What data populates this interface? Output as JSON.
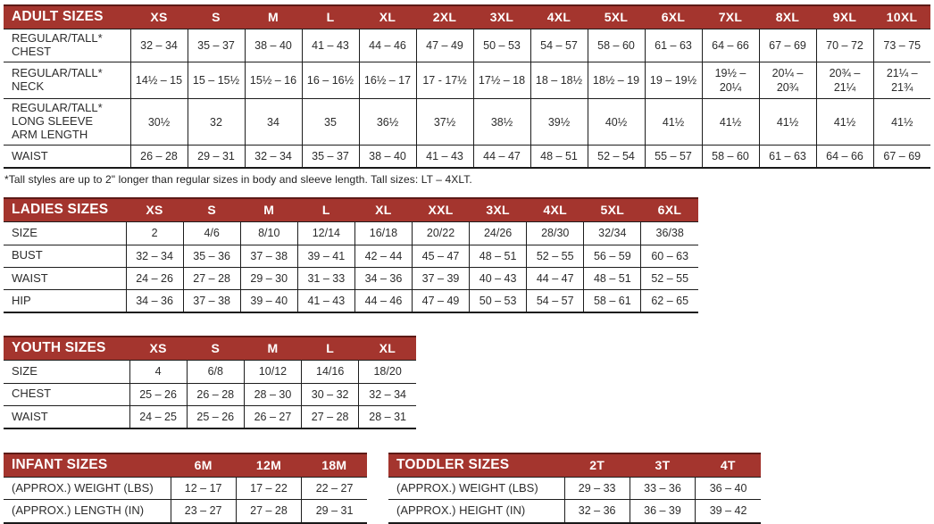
{
  "page": {
    "background": "#ffffff",
    "accent_red": "#A4352E",
    "header_text_color": "#ffffff",
    "border_color": "#1d1d1d"
  },
  "tables": [
    {
      "id": "adult-sizes",
      "title": "ADULT SIZES",
      "columns": [
        "XS",
        "S",
        "M",
        "L",
        "XL",
        "2XL",
        "3XL",
        "4XL",
        "5XL",
        "6XL",
        "7XL",
        "8XL",
        "9XL",
        "10XL"
      ],
      "rows": [
        {
          "label": "REGULAR/TALL*\nCHEST",
          "values": [
            "32 – 34",
            "35 – 37",
            "38 – 40",
            "41 – 43",
            "44 – 46",
            "47 – 49",
            "50 – 53",
            "54 – 57",
            "58 – 60",
            "61 – 63",
            "64 – 66",
            "67 – 69",
            "70 – 72",
            "73 – 75"
          ]
        },
        {
          "label": "REGULAR/TALL*\nNECK",
          "values": [
            "14½ – 15",
            "15 – 15½",
            "15½ – 16",
            "16 – 16½",
            "16½ – 17",
            "17 - 17½",
            "17½ – 18",
            "18 – 18½",
            "18½ – 19",
            "19 – 19½",
            "19½ –\n20¼",
            "20¼ –\n20¾",
            "20¾ –\n21¼",
            "21¼ –\n21¾"
          ]
        },
        {
          "label": "REGULAR/TALL*\nLONG SLEEVE\nARM LENGTH",
          "values": [
            "30½",
            "32",
            "34",
            "35",
            "36½",
            "37½",
            "38½",
            "39½",
            "40½",
            "41½",
            "41½",
            "41½",
            "41½",
            "41½"
          ]
        },
        {
          "label": "WAIST",
          "values": [
            "26 – 28",
            "29 – 31",
            "32 – 34",
            "35 – 37",
            "38 – 40",
            "41 – 43",
            "44 – 47",
            "48 – 51",
            "52 – 54",
            "55 – 57",
            "58 – 60",
            "61 – 63",
            "64 – 66",
            "67 – 69"
          ]
        }
      ],
      "footnote": "*Tall styles are up to 2\" longer than regular sizes in body and sleeve length. Tall sizes: LT – 4XLT."
    },
    {
      "id": "ladies-sizes",
      "title": "LADIES SIZES",
      "columns": [
        "XS",
        "S",
        "M",
        "L",
        "XL",
        "XXL",
        "3XL",
        "4XL",
        "5XL",
        "6XL"
      ],
      "rows": [
        {
          "label": "SIZE",
          "values": [
            "2",
            "4/6",
            "8/10",
            "12/14",
            "16/18",
            "20/22",
            "24/26",
            "28/30",
            "32/34",
            "36/38"
          ]
        },
        {
          "label": "BUST",
          "values": [
            "32 – 34",
            "35 – 36",
            "37 – 38",
            "39 – 41",
            "42 – 44",
            "45 – 47",
            "48 – 51",
            "52 – 55",
            "56 – 59",
            "60 – 63"
          ]
        },
        {
          "label": "WAIST",
          "values": [
            "24 – 26",
            "27 – 28",
            "29 – 30",
            "31 – 33",
            "34 – 36",
            "37 – 39",
            "40 – 43",
            "44 – 47",
            "48 – 51",
            "52 – 55"
          ]
        },
        {
          "label": "HIP",
          "values": [
            "34 – 36",
            "37 – 38",
            "39 – 40",
            "41 – 43",
            "44 – 46",
            "47 – 49",
            "50 – 53",
            "54 – 57",
            "58 – 61",
            "62 – 65"
          ]
        }
      ]
    },
    {
      "id": "youth-sizes",
      "title": "YOUTH SIZES",
      "columns": [
        "XS",
        "S",
        "M",
        "L",
        "XL"
      ],
      "rows": [
        {
          "label": "SIZE",
          "values": [
            "4",
            "6/8",
            "10/12",
            "14/16",
            "18/20"
          ]
        },
        {
          "label": "CHEST",
          "values": [
            "25 – 26",
            "26 – 28",
            "28 – 30",
            "30 – 32",
            "32 – 34"
          ]
        },
        {
          "label": "WAIST",
          "values": [
            "24 – 25",
            "25 – 26",
            "26 – 27",
            "27 – 28",
            "28 – 31"
          ]
        }
      ]
    },
    {
      "id": "infant-sizes",
      "title": "INFANT SIZES",
      "columns": [
        "6M",
        "12M",
        "18M"
      ],
      "rows": [
        {
          "label": "(APPROX.) WEIGHT (LBS)",
          "values": [
            "12 – 17",
            "17 – 22",
            "22 – 27"
          ]
        },
        {
          "label": "(APPROX.) LENGTH (IN)",
          "values": [
            "23 – 27",
            "27 – 28",
            "29 – 31"
          ]
        }
      ]
    },
    {
      "id": "toddler-sizes",
      "title": "TODDLER SIZES",
      "columns": [
        "2T",
        "3T",
        "4T"
      ],
      "rows": [
        {
          "label": "(APPROX.) WEIGHT (LBS)",
          "values": [
            "29 – 33",
            "33 – 36",
            "36 – 40"
          ]
        },
        {
          "label": "(APPROX.) HEIGHT (IN)",
          "values": [
            "32 – 36",
            "36 – 39",
            "39 – 42"
          ]
        }
      ]
    }
  ]
}
